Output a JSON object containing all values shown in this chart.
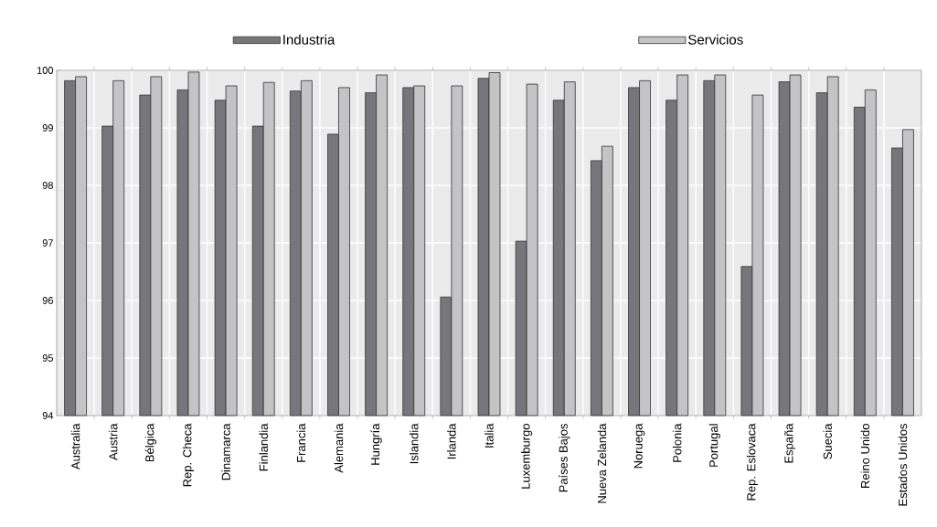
{
  "chart_data": {
    "type": "bar",
    "categories": [
      "Australia",
      "Austria",
      "Bélgica",
      "Rep. Checa",
      "Dinamarca",
      "Finlandia",
      "Francia",
      "Alemania",
      "Hungría",
      "Islandia",
      "Irlanda",
      "Italia",
      "Luxemburgo",
      "Países Bajos",
      "Nueva Zelanda",
      "Noruega",
      "Polonia",
      "Portugal",
      "Rep. Eslovaca",
      "España",
      "Suecia",
      "Reino Unido",
      "Estados Unidos"
    ],
    "series": [
      {
        "name": "Industria",
        "color": "#77777b",
        "values": [
          99.82,
          99.03,
          99.57,
          99.66,
          99.48,
          99.03,
          99.64,
          98.89,
          99.61,
          99.7,
          96.06,
          99.86,
          97.03,
          99.48,
          98.43,
          99.7,
          99.48,
          99.82,
          96.59,
          99.8,
          99.61,
          99.36,
          98.65
        ]
      },
      {
        "name": "Servicios",
        "color": "#c4c4c6",
        "values": [
          99.89,
          99.82,
          99.89,
          99.97,
          99.73,
          99.79,
          99.82,
          99.7,
          99.92,
          99.73,
          99.73,
          99.96,
          99.76,
          99.8,
          98.68,
          99.82,
          99.92,
          99.92,
          99.57,
          99.92,
          99.89,
          99.66,
          98.97
        ]
      }
    ],
    "ylim": [
      94,
      100
    ],
    "yticks": [
      94,
      95,
      96,
      97,
      98,
      99,
      100
    ],
    "grid": true,
    "legend": "top"
  }
}
